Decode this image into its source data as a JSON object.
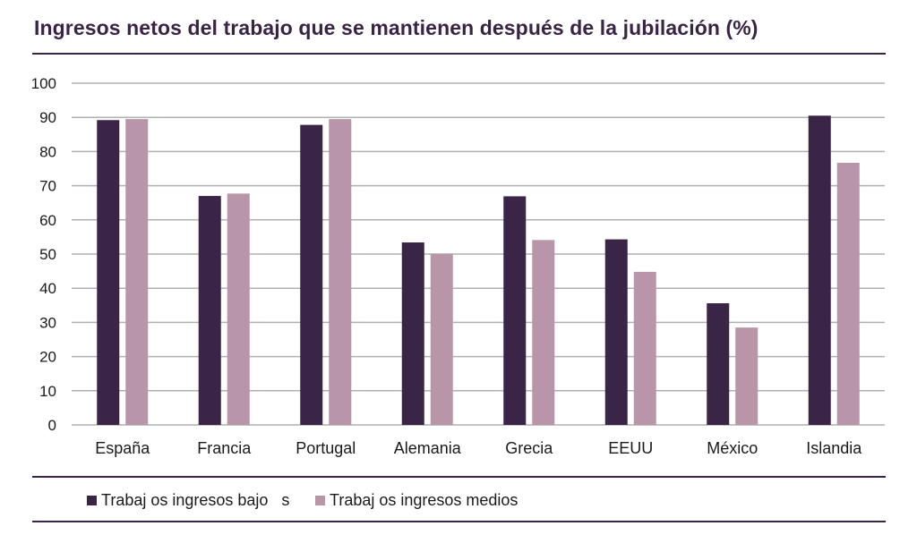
{
  "title": "Ingresos netos del trabajo que se mantienen después de la jubilación (%)",
  "colors": {
    "dark": "#3b2546",
    "light": "#b895a8",
    "grid": "#b0b0b0",
    "rule": "#3a2446"
  },
  "chart_data": {
    "type": "bar",
    "categories": [
      "España",
      "Francia",
      "Portugal",
      "Alemania",
      "Grecia",
      "EEUU",
      "México",
      "Islandia"
    ],
    "series": [
      {
        "name": "Trabaj os ingresos bajo   s",
        "values": [
          89.2,
          67.0,
          87.8,
          53.4,
          66.9,
          54.3,
          35.6,
          90.5
        ]
      },
      {
        "name": "Trabaj os ingresos medios",
        "values": [
          89.5,
          67.7,
          89.5,
          50.1,
          54.1,
          44.8,
          28.5,
          76.7
        ]
      }
    ],
    "ylim": [
      0,
      100
    ],
    "yticks": [
      "0",
      "10",
      "20",
      "30",
      "40",
      "50",
      "60",
      "70",
      "80",
      "90",
      "100"
    ],
    "grid": true,
    "legend_position": "bottom-left"
  }
}
